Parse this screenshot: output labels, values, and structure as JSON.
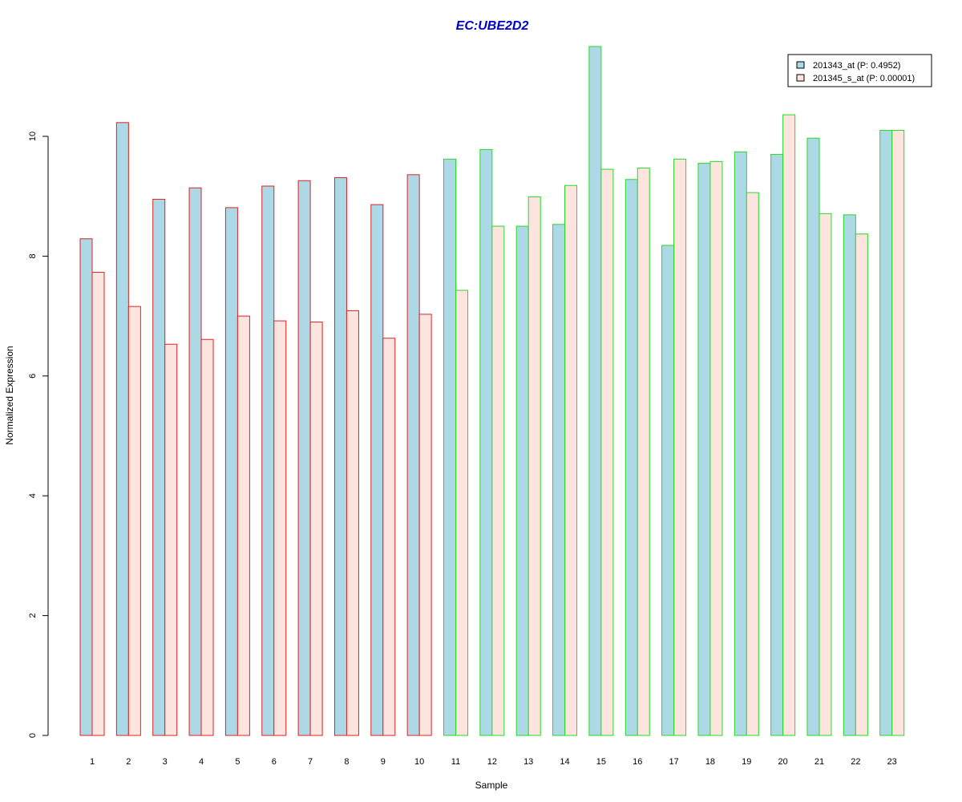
{
  "chart_data": {
    "type": "bar",
    "title": "EC:UBE2D2",
    "xlabel": "Sample",
    "ylabel": "Normalized Expression",
    "ylim": [
      0,
      11.5
    ],
    "yticks": [
      0,
      2,
      4,
      6,
      8,
      10
    ],
    "grid": false,
    "legend_position": "top-right",
    "categories": [
      "1",
      "2",
      "3",
      "4",
      "5",
      "6",
      "7",
      "8",
      "9",
      "10",
      "11",
      "12",
      "13",
      "14",
      "15",
      "16",
      "17",
      "18",
      "19",
      "20",
      "21",
      "22",
      "23"
    ],
    "series": [
      {
        "name": "201343_at (P: 0.4952)",
        "fill": "#add8e6",
        "values": [
          8.29,
          10.23,
          8.95,
          9.14,
          8.81,
          9.17,
          9.26,
          9.31,
          8.86,
          9.36,
          9.62,
          9.78,
          8.5,
          8.53,
          11.5,
          9.28,
          8.18,
          9.55,
          9.74,
          9.7,
          9.97,
          8.69,
          10.1
        ]
      },
      {
        "name": "201345_s_at (P: 0.00001)",
        "fill": "#fde4de",
        "values": [
          7.73,
          7.16,
          6.53,
          6.61,
          7.0,
          6.92,
          6.9,
          7.09,
          6.63,
          7.03,
          7.43,
          8.5,
          8.99,
          9.18,
          9.45,
          9.47,
          9.62,
          9.58,
          9.06,
          10.36,
          8.71,
          8.37,
          10.1
        ]
      }
    ],
    "group_border_colors": [
      "#dd2222",
      "#dd2222",
      "#dd2222",
      "#dd2222",
      "#dd2222",
      "#dd2222",
      "#dd2222",
      "#dd2222",
      "#dd2222",
      "#dd2222",
      "#22dd22",
      "#22dd22",
      "#22dd22",
      "#22dd22",
      "#22dd22",
      "#22dd22",
      "#22dd22",
      "#22dd22",
      "#22dd22",
      "#22dd22",
      "#22dd22",
      "#22dd22",
      "#22dd22"
    ]
  }
}
